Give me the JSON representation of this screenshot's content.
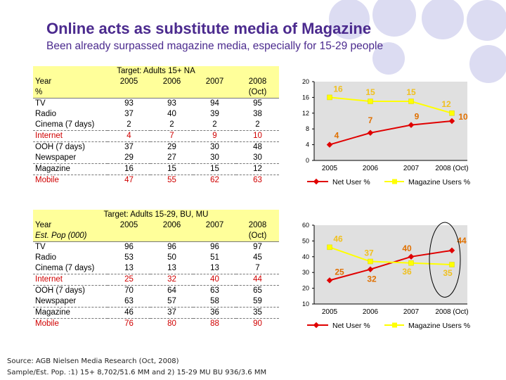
{
  "slide": {
    "title": "Online acts as substitute media of Magazine",
    "subtitle": "Been already surpassed magazine media, especially for 15-29 people",
    "source_line1": "Source: AGB Nielsen Media Research (Oct, 2008)",
    "source_line2": "Sample/Est. Pop. :1) 15+ 8,702/51.6 MM and 2) 15-29 MU BU 936/3.6 MM"
  },
  "colors": {
    "title": "#4b2a8e",
    "table_fill": "#ffff9a",
    "red": "#d00000",
    "net_line": "#e00000",
    "mag_line": "#ffff00",
    "chart_bg": "#e0e0e0",
    "circle": "#dcdcf2"
  },
  "table1": {
    "caption": "Target: Adults 15+ NA",
    "header_label": "Year",
    "years": [
      "2005",
      "2006",
      "2007",
      "2008"
    ],
    "sub_label": "%",
    "sub_note": "(Oct)",
    "rows": [
      {
        "label": "TV",
        "values": [
          "93",
          "93",
          "94",
          "95"
        ]
      },
      {
        "label": "Radio",
        "values": [
          "37",
          "40",
          "39",
          "38"
        ]
      },
      {
        "label": "Cinema (7 days)",
        "values": [
          "2",
          "2",
          "2",
          "2"
        ]
      },
      {
        "label": "Internet",
        "values": [
          "4",
          "7",
          "9",
          "10"
        ]
      },
      {
        "label": "OOH (7 days)",
        "values": [
          "37",
          "29",
          "30",
          "48"
        ]
      },
      {
        "label": "Newspaper",
        "values": [
          "29",
          "27",
          "30",
          "30"
        ]
      },
      {
        "label": "Magazine",
        "values": [
          "16",
          "15",
          "15",
          "12"
        ]
      },
      {
        "label": "Mobile",
        "values": [
          "47",
          "55",
          "62",
          "63"
        ]
      }
    ]
  },
  "table2": {
    "caption": "Target: Adults 15-29, BU, MU",
    "header_label": "Year",
    "years": [
      "2005",
      "2006",
      "2007",
      "2008"
    ],
    "sub_label": "Est. Pop (000)",
    "sub_note": "(Oct)",
    "rows": [
      {
        "label": "TV",
        "values": [
          "96",
          "96",
          "96",
          "97"
        ]
      },
      {
        "label": "Radio",
        "values": [
          "53",
          "50",
          "51",
          "45"
        ]
      },
      {
        "label": "Cinema (7 days)",
        "values": [
          "13",
          "13",
          "13",
          "7"
        ]
      },
      {
        "label": "Internet",
        "values": [
          "25",
          "32",
          "40",
          "44"
        ]
      },
      {
        "label": "OOH (7 days)",
        "values": [
          "70",
          "64",
          "63",
          "65"
        ]
      },
      {
        "label": "Newspaper",
        "values": [
          "63",
          "57",
          "58",
          "59"
        ]
      },
      {
        "label": "Magazine",
        "values": [
          "46",
          "37",
          "36",
          "35"
        ]
      },
      {
        "label": "Mobile",
        "values": [
          "76",
          "80",
          "88",
          "90"
        ]
      }
    ]
  },
  "chart_data": [
    {
      "type": "line",
      "title": "",
      "categories": [
        "2005",
        "2006",
        "2007",
        "2008 (Oct)"
      ],
      "ylim": [
        0,
        20
      ],
      "yticks": [
        "0",
        "4",
        "8",
        "12",
        "16",
        "20"
      ],
      "grid": false,
      "legend": "bottom",
      "series": [
        {
          "name": "Net User %",
          "values": [
            4,
            7,
            9,
            10
          ],
          "labels": [
            "4",
            "7",
            "9",
            "10"
          ]
        },
        {
          "name": "Magazine Users %",
          "values": [
            16,
            15,
            15,
            12
          ],
          "labels": [
            "16",
            "15",
            "15",
            "12"
          ]
        }
      ]
    },
    {
      "type": "line",
      "title": "",
      "categories": [
        "2005",
        "2006",
        "2007",
        "2008 (Oct)"
      ],
      "ylim": [
        10,
        60
      ],
      "yticks": [
        "10",
        "20",
        "30",
        "40",
        "50",
        "60"
      ],
      "grid": false,
      "legend": "bottom",
      "series": [
        {
          "name": "Net User %",
          "values": [
            25,
            32,
            40,
            44
          ],
          "labels": [
            "25",
            "32",
            "40",
            "44"
          ]
        },
        {
          "name": "Magazine Users %",
          "values": [
            46,
            37,
            36,
            35
          ],
          "labels": [
            "46",
            "37",
            "36",
            "35"
          ]
        }
      ]
    }
  ]
}
